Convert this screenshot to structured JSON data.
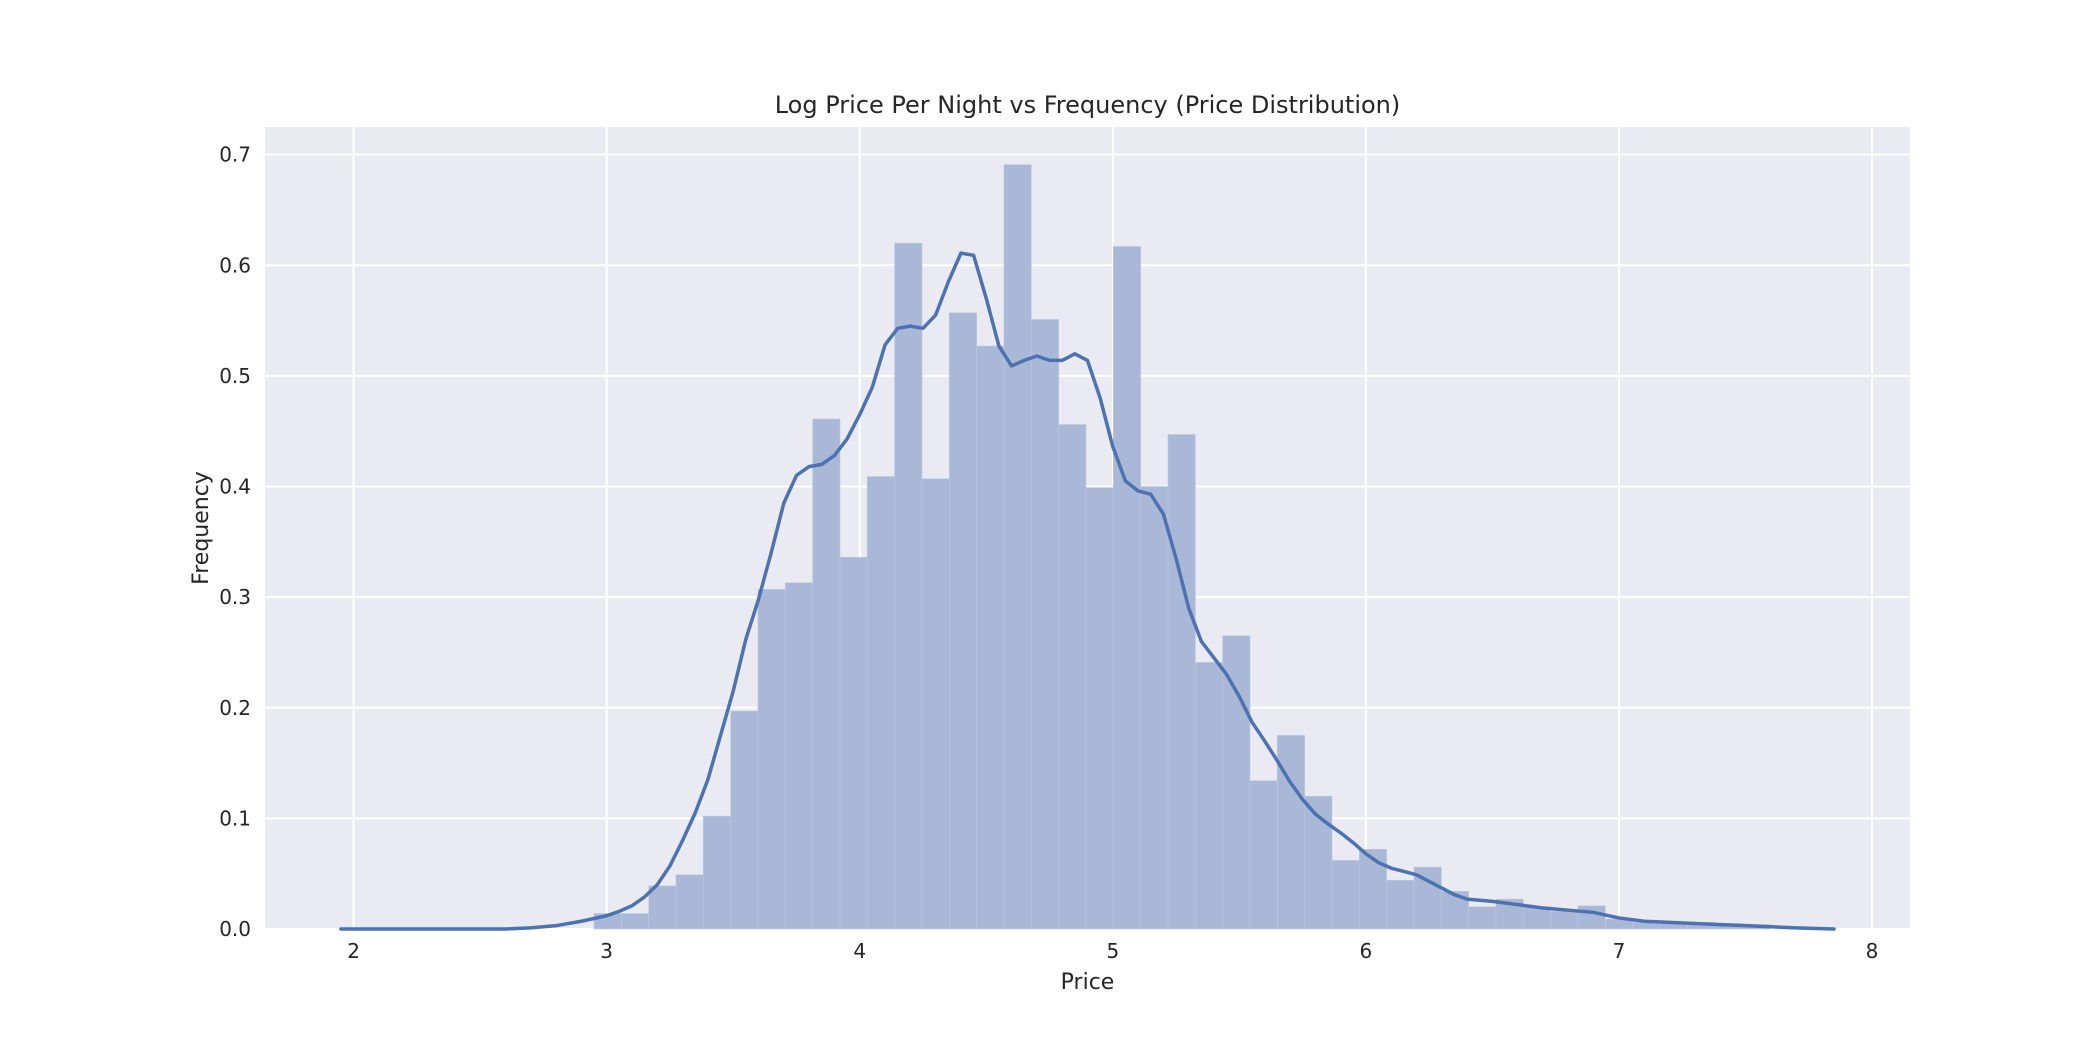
{
  "chart_data": {
    "type": "bar",
    "title": "Log Price Per Night vs Frequency (Price Distribution)",
    "xlabel": "Price",
    "ylabel": "Frequency",
    "xlim": [
      1.65,
      8.15
    ],
    "ylim": [
      0,
      0.725
    ],
    "x_ticks": [
      2,
      3,
      4,
      5,
      6,
      7,
      8
    ],
    "y_ticks": [
      0.0,
      0.1,
      0.2,
      0.3,
      0.4,
      0.5,
      0.6,
      0.7
    ],
    "grid": true,
    "bar_color": "#aab8d7",
    "line_color": "#4c72b0",
    "background_color": "#eaeaf2",
    "grid_color": "#ffffff",
    "histogram": {
      "bin_edges": [
        2.95,
        3.058,
        3.166,
        3.274,
        3.382,
        3.49,
        3.598,
        3.706,
        3.814,
        3.922,
        4.03,
        4.138,
        4.246,
        4.354,
        4.462,
        4.57,
        4.678,
        4.786,
        4.894,
        5.002,
        5.11,
        5.218,
        5.326,
        5.434,
        5.542,
        5.65,
        5.758,
        5.866,
        5.974,
        6.082,
        6.19,
        6.298,
        6.406,
        6.514,
        6.622,
        6.73,
        6.838,
        6.946,
        7.054,
        7.162,
        7.27,
        7.378,
        7.486,
        7.594
      ],
      "values": [
        0.014,
        0.014,
        0.039,
        0.049,
        0.102,
        0.197,
        0.307,
        0.313,
        0.461,
        0.336,
        0.409,
        0.62,
        0.407,
        0.557,
        0.527,
        0.691,
        0.551,
        0.456,
        0.399,
        0.617,
        0.4,
        0.447,
        0.241,
        0.265,
        0.134,
        0.175,
        0.12,
        0.062,
        0.072,
        0.044,
        0.056,
        0.034,
        0.02,
        0.027,
        0.02,
        0.016,
        0.021,
        0.009,
        0.006,
        0.005,
        0.006,
        0.005,
        0.004
      ]
    },
    "kde": {
      "x": [
        1.95,
        2.2,
        2.4,
        2.6,
        2.7,
        2.8,
        2.9,
        3.0,
        3.05,
        3.1,
        3.15,
        3.2,
        3.25,
        3.3,
        3.35,
        3.4,
        3.45,
        3.5,
        3.55,
        3.6,
        3.65,
        3.7,
        3.75,
        3.8,
        3.85,
        3.9,
        3.95,
        4.0,
        4.05,
        4.1,
        4.15,
        4.2,
        4.25,
        4.3,
        4.35,
        4.4,
        4.45,
        4.5,
        4.55,
        4.6,
        4.65,
        4.7,
        4.75,
        4.8,
        4.85,
        4.9,
        4.95,
        5.0,
        5.05,
        5.1,
        5.15,
        5.2,
        5.25,
        5.3,
        5.35,
        5.4,
        5.45,
        5.5,
        5.55,
        5.6,
        5.65,
        5.7,
        5.75,
        5.8,
        5.85,
        5.9,
        5.95,
        6.0,
        6.05,
        6.1,
        6.15,
        6.2,
        6.25,
        6.3,
        6.35,
        6.4,
        6.5,
        6.6,
        6.7,
        6.8,
        6.9,
        7.0,
        7.1,
        7.2,
        7.3,
        7.4,
        7.5,
        7.6,
        7.7,
        7.85
      ],
      "y": [
        0.0,
        0.0,
        0.0,
        0.0,
        0.001,
        0.003,
        0.007,
        0.012,
        0.016,
        0.021,
        0.029,
        0.04,
        0.057,
        0.08,
        0.105,
        0.135,
        0.175,
        0.215,
        0.262,
        0.298,
        0.34,
        0.385,
        0.41,
        0.418,
        0.42,
        0.428,
        0.443,
        0.465,
        0.49,
        0.528,
        0.543,
        0.545,
        0.543,
        0.555,
        0.585,
        0.611,
        0.609,
        0.57,
        0.527,
        0.509,
        0.514,
        0.518,
        0.514,
        0.514,
        0.52,
        0.514,
        0.48,
        0.436,
        0.405,
        0.396,
        0.393,
        0.375,
        0.335,
        0.29,
        0.26,
        0.245,
        0.23,
        0.21,
        0.187,
        0.17,
        0.152,
        0.133,
        0.117,
        0.104,
        0.095,
        0.087,
        0.078,
        0.068,
        0.06,
        0.055,
        0.052,
        0.049,
        0.043,
        0.037,
        0.031,
        0.027,
        0.025,
        0.022,
        0.019,
        0.017,
        0.015,
        0.01,
        0.007,
        0.006,
        0.005,
        0.004,
        0.003,
        0.002,
        0.001,
        0.0
      ]
    }
  }
}
